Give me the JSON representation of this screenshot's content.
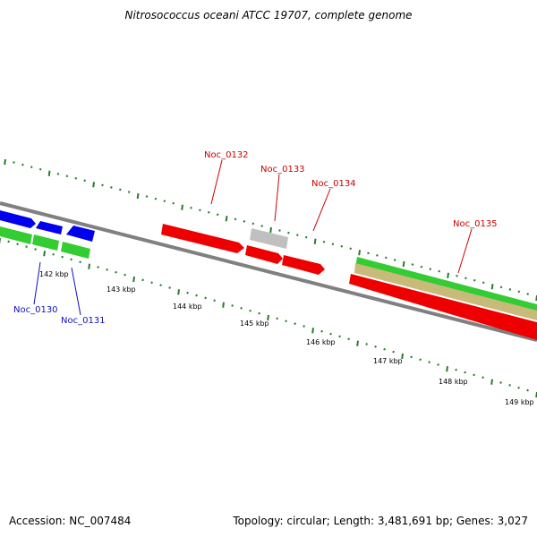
{
  "header": {
    "title": "Nitrosococcus oceani ATCC 19707, complete genome"
  },
  "footer": {
    "accession": "Accession: NC_007484",
    "summary": "Topology: circular; Length: 3,481,691 bp; Genes: 3,027"
  },
  "axis": {
    "unit": "kbp",
    "ticks": [
      {
        "label": "142 kbp"
      },
      {
        "label": "143 kbp"
      },
      {
        "label": "144 kbp"
      },
      {
        "label": "145 kbp"
      },
      {
        "label": "146 kbp"
      },
      {
        "label": "147 kbp"
      },
      {
        "label": "148 kbp"
      },
      {
        "label": "149 kbp"
      }
    ]
  },
  "genes": [
    {
      "name": "Noc_0130",
      "color": "#1010c0"
    },
    {
      "name": "Noc_0131",
      "color": "#1010c0"
    },
    {
      "name": "Noc_0132",
      "color": "#cc0000"
    },
    {
      "name": "Noc_0133",
      "color": "#cc0000"
    },
    {
      "name": "Noc_0134",
      "color": "#cc0000"
    },
    {
      "name": "Noc_0135",
      "color": "#cc0000"
    }
  ],
  "colors": {
    "backbone": "#808080",
    "tick": "#2a7a2a",
    "blue_feature": "#0000ee",
    "green_feature": "#33cc33",
    "red_feature": "#ee0000",
    "grey_feature": "#c0c0c0",
    "tan_feature": "#c8bb7a",
    "label_blue": "#1010c0",
    "label_red": "#cc0000"
  }
}
